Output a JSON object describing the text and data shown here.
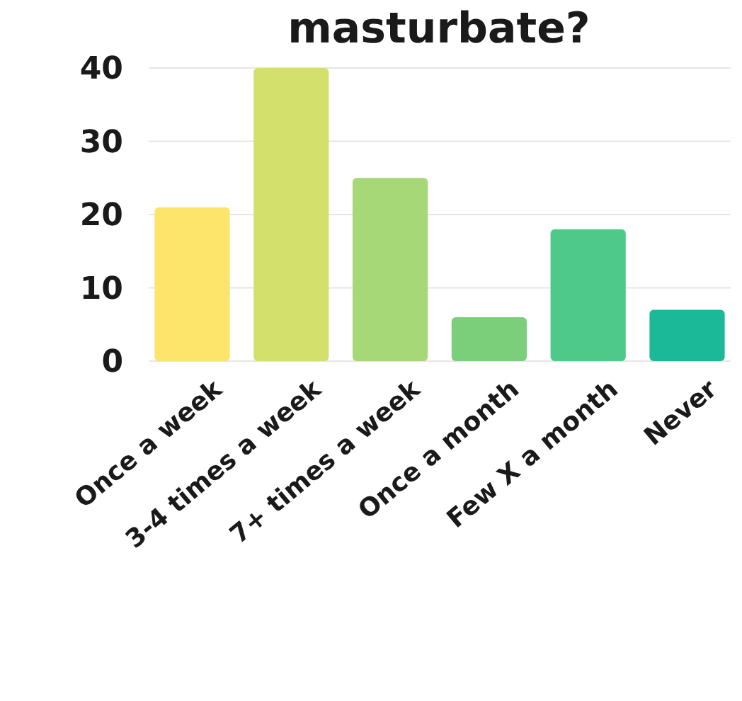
{
  "chart_data": {
    "type": "bar",
    "title": "masturbate?",
    "categories": [
      "Once a week",
      "3-4 times a week",
      "7+ times a week",
      "Once a month",
      "Few X a month",
      "Never"
    ],
    "values": [
      21,
      40,
      25,
      6,
      18,
      7
    ],
    "colors": [
      "#fde46a",
      "#d4e06c",
      "#a6d877",
      "#7ccf7a",
      "#4ec98a",
      "#1cb998"
    ],
    "ylim": [
      0,
      40
    ],
    "yticks": [
      0,
      10,
      20,
      30,
      40
    ],
    "grid": "y"
  }
}
